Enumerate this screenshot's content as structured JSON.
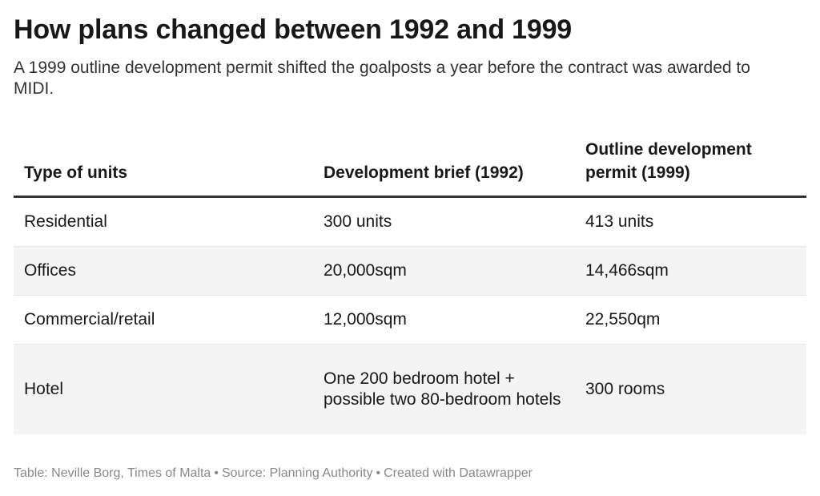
{
  "title": "How plans changed between 1992 and 1999",
  "subtitle": "A 1999 outline development permit shifted the goalposts a year before the contract was awarded to MIDI.",
  "chart_data": {
    "type": "table",
    "columns": [
      "Type of units",
      "Development brief (1992)",
      "Outline development permit (1999)"
    ],
    "rows": [
      [
        "Residential",
        "300 units",
        "413 units"
      ],
      [
        "Offices",
        "20,000sqm",
        "14,466sqm"
      ],
      [
        "Commercial/retail",
        "12,000sqm",
        "22,550qm"
      ],
      [
        "Hotel",
        "One 200 bedroom hotel + possible two 80-bedroom hotels",
        "300 rooms"
      ]
    ]
  },
  "footer": {
    "credit": "Table: Neville Borg, Times of Malta",
    "source": "Source: Planning Authority",
    "tool": "Created with Datawrapper",
    "separator": "•"
  },
  "colors": {
    "text": "#181818",
    "muted": "#888888",
    "row_stripe": "#f4f4f4",
    "header_rule": "#333333"
  }
}
